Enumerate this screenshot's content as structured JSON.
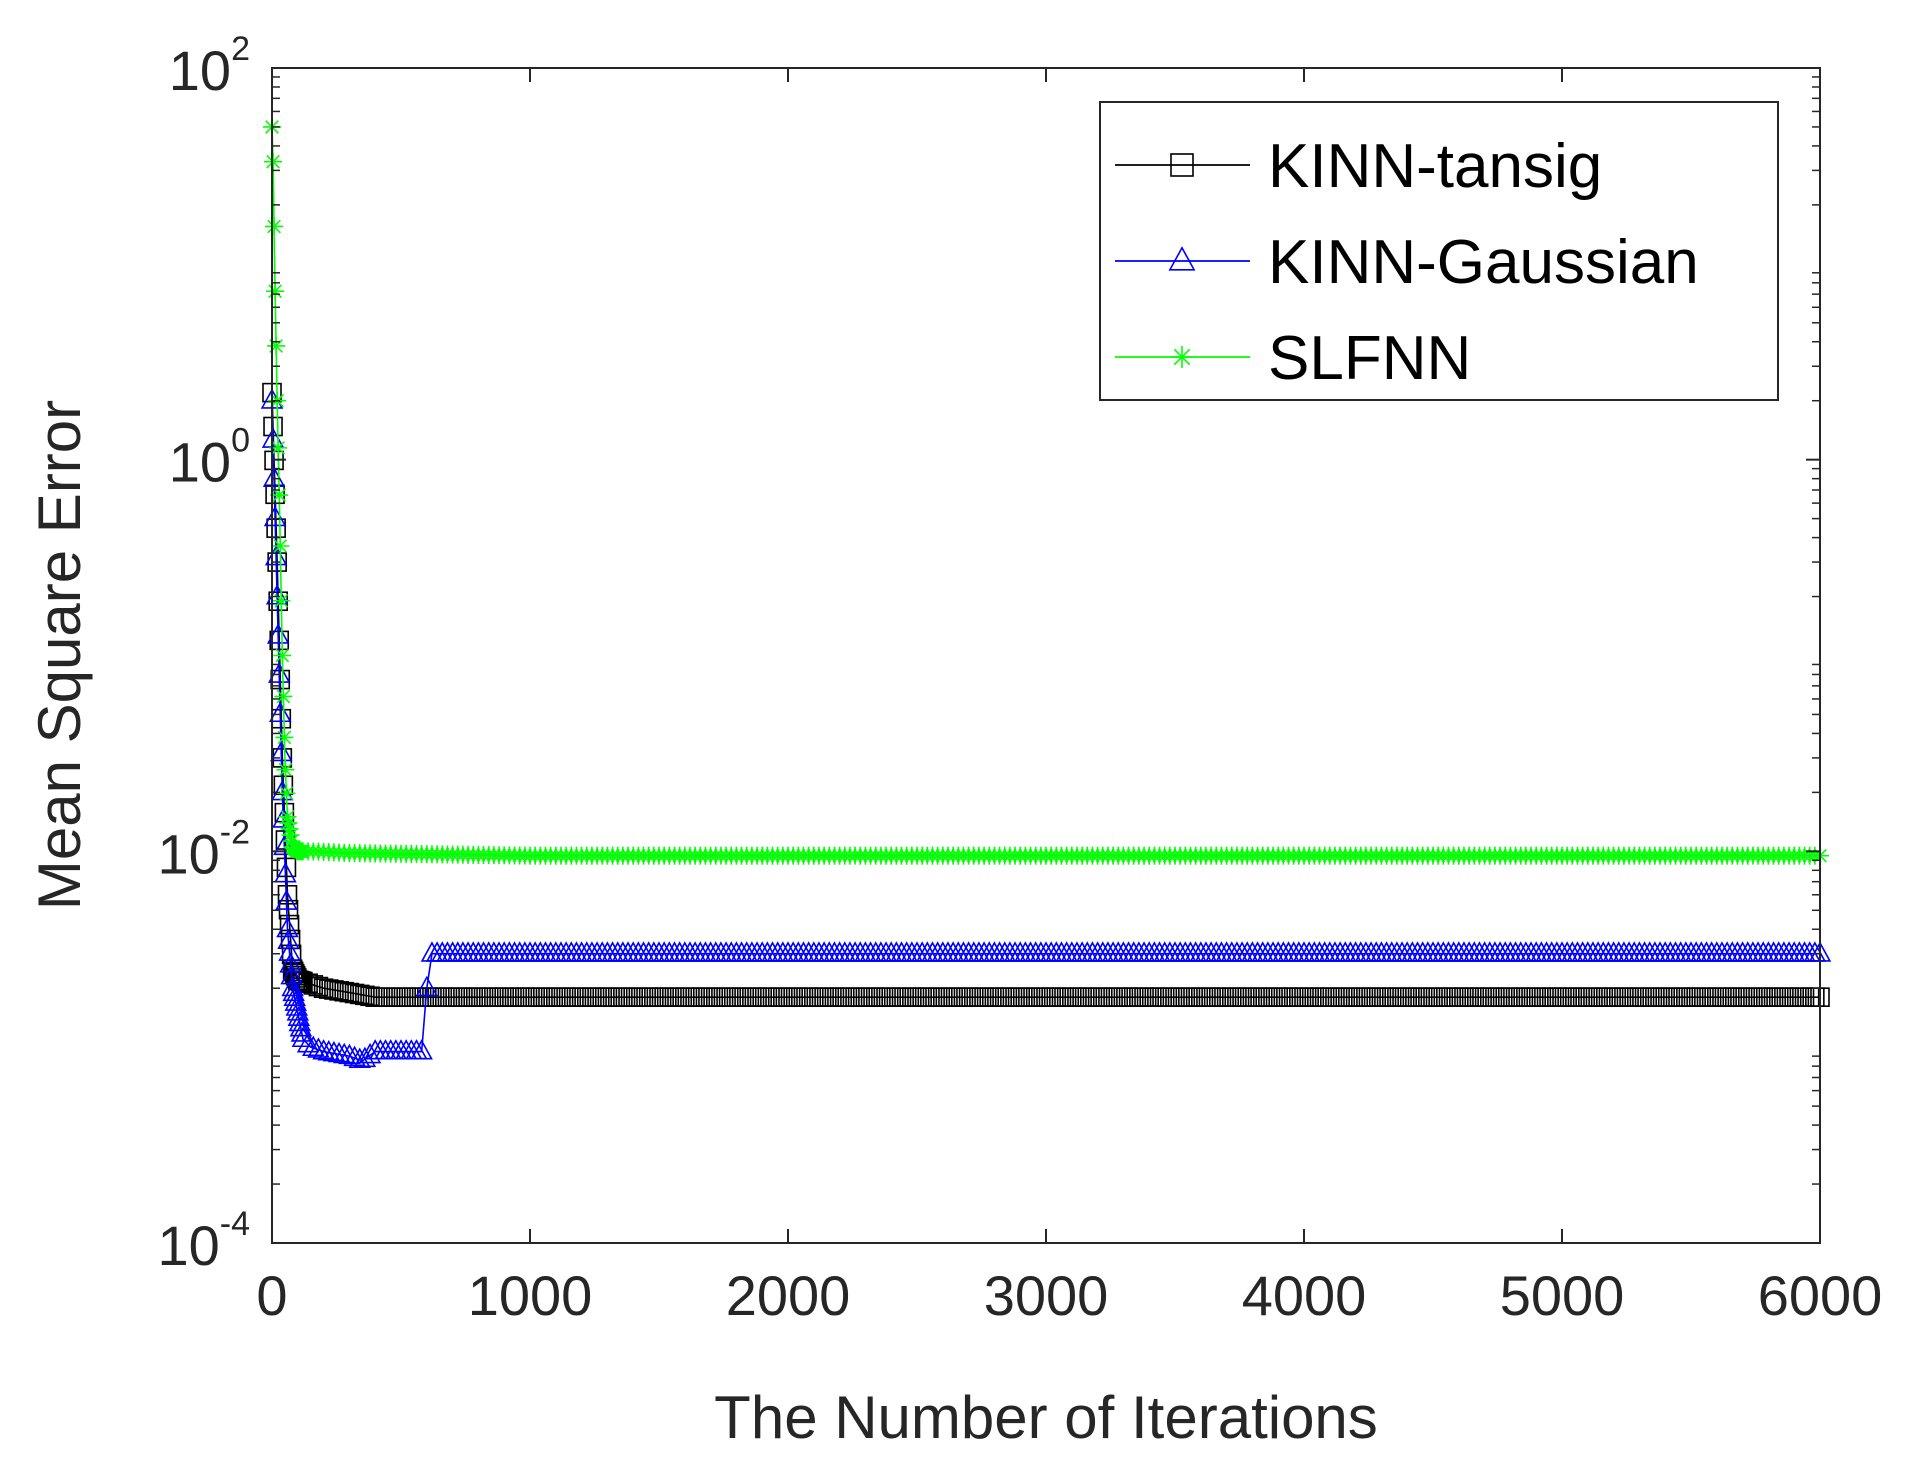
{
  "chart_data": {
    "type": "line",
    "xlabel": "The Number of Iterations",
    "ylabel": "Mean Square Error",
    "xlim": [
      0,
      6000
    ],
    "ylim": [
      0.0001,
      100
    ],
    "yscale": "log",
    "grid": false,
    "legend_position": "top-right",
    "xticks": [
      {
        "value": 0,
        "label": "0"
      },
      {
        "value": 1000,
        "label": "1000"
      },
      {
        "value": 2000,
        "label": "2000"
      },
      {
        "value": 3000,
        "label": "3000"
      },
      {
        "value": 4000,
        "label": "4000"
      },
      {
        "value": 5000,
        "label": "5000"
      },
      {
        "value": 6000,
        "label": "6000"
      }
    ],
    "yticks": [
      {
        "value": 100,
        "base": "10",
        "exp": "2"
      },
      {
        "value": 1,
        "base": "10",
        "exp": "0"
      },
      {
        "value": 0.01,
        "base": "10",
        "exp": "-2"
      },
      {
        "value": 0.0001,
        "base": "10",
        "exp": "-4"
      }
    ],
    "series": [
      {
        "name": "KINN-tansig",
        "color": "#000000",
        "marker": "square",
        "x": [
          0,
          20,
          40,
          60,
          80,
          100,
          150,
          200,
          300,
          400,
          600,
          1000,
          2000,
          3000,
          4000,
          5000,
          6000
        ],
        "y": [
          2.2,
          0.3,
          0.03,
          0.006,
          0.0025,
          0.0022,
          0.0021,
          0.002,
          0.0019,
          0.0018,
          0.0018,
          0.0018,
          0.0018,
          0.0018,
          0.0018,
          0.0018,
          0.0018
        ]
      },
      {
        "name": "KINN-Gaussian",
        "color": "#0000ff",
        "marker": "triangle",
        "x": [
          0,
          20,
          40,
          60,
          80,
          100,
          120,
          150,
          200,
          300,
          350,
          400,
          500,
          580,
          600,
          620,
          650,
          1000,
          2000,
          3000,
          4000,
          5000,
          6000
        ],
        "y": [
          2.0,
          0.2,
          0.02,
          0.004,
          0.002,
          0.0015,
          0.0011,
          0.001,
          0.00095,
          0.0009,
          0.00085,
          0.00095,
          0.00095,
          0.00095,
          0.002,
          0.003,
          0.003,
          0.003,
          0.003,
          0.003,
          0.003,
          0.003,
          0.003
        ]
      },
      {
        "name": "SLFNN",
        "color": "#00ff00",
        "marker": "star",
        "x": [
          0,
          5,
          10,
          20,
          30,
          40,
          50,
          60,
          80,
          100,
          150,
          300,
          1000,
          2000,
          3000,
          4000,
          5000,
          6000
        ],
        "y": [
          50,
          30,
          10,
          2.0,
          0.5,
          0.1,
          0.03,
          0.015,
          0.0105,
          0.01,
          0.01,
          0.0098,
          0.0095,
          0.0095,
          0.0095,
          0.0095,
          0.0095,
          0.0095
        ]
      }
    ]
  }
}
